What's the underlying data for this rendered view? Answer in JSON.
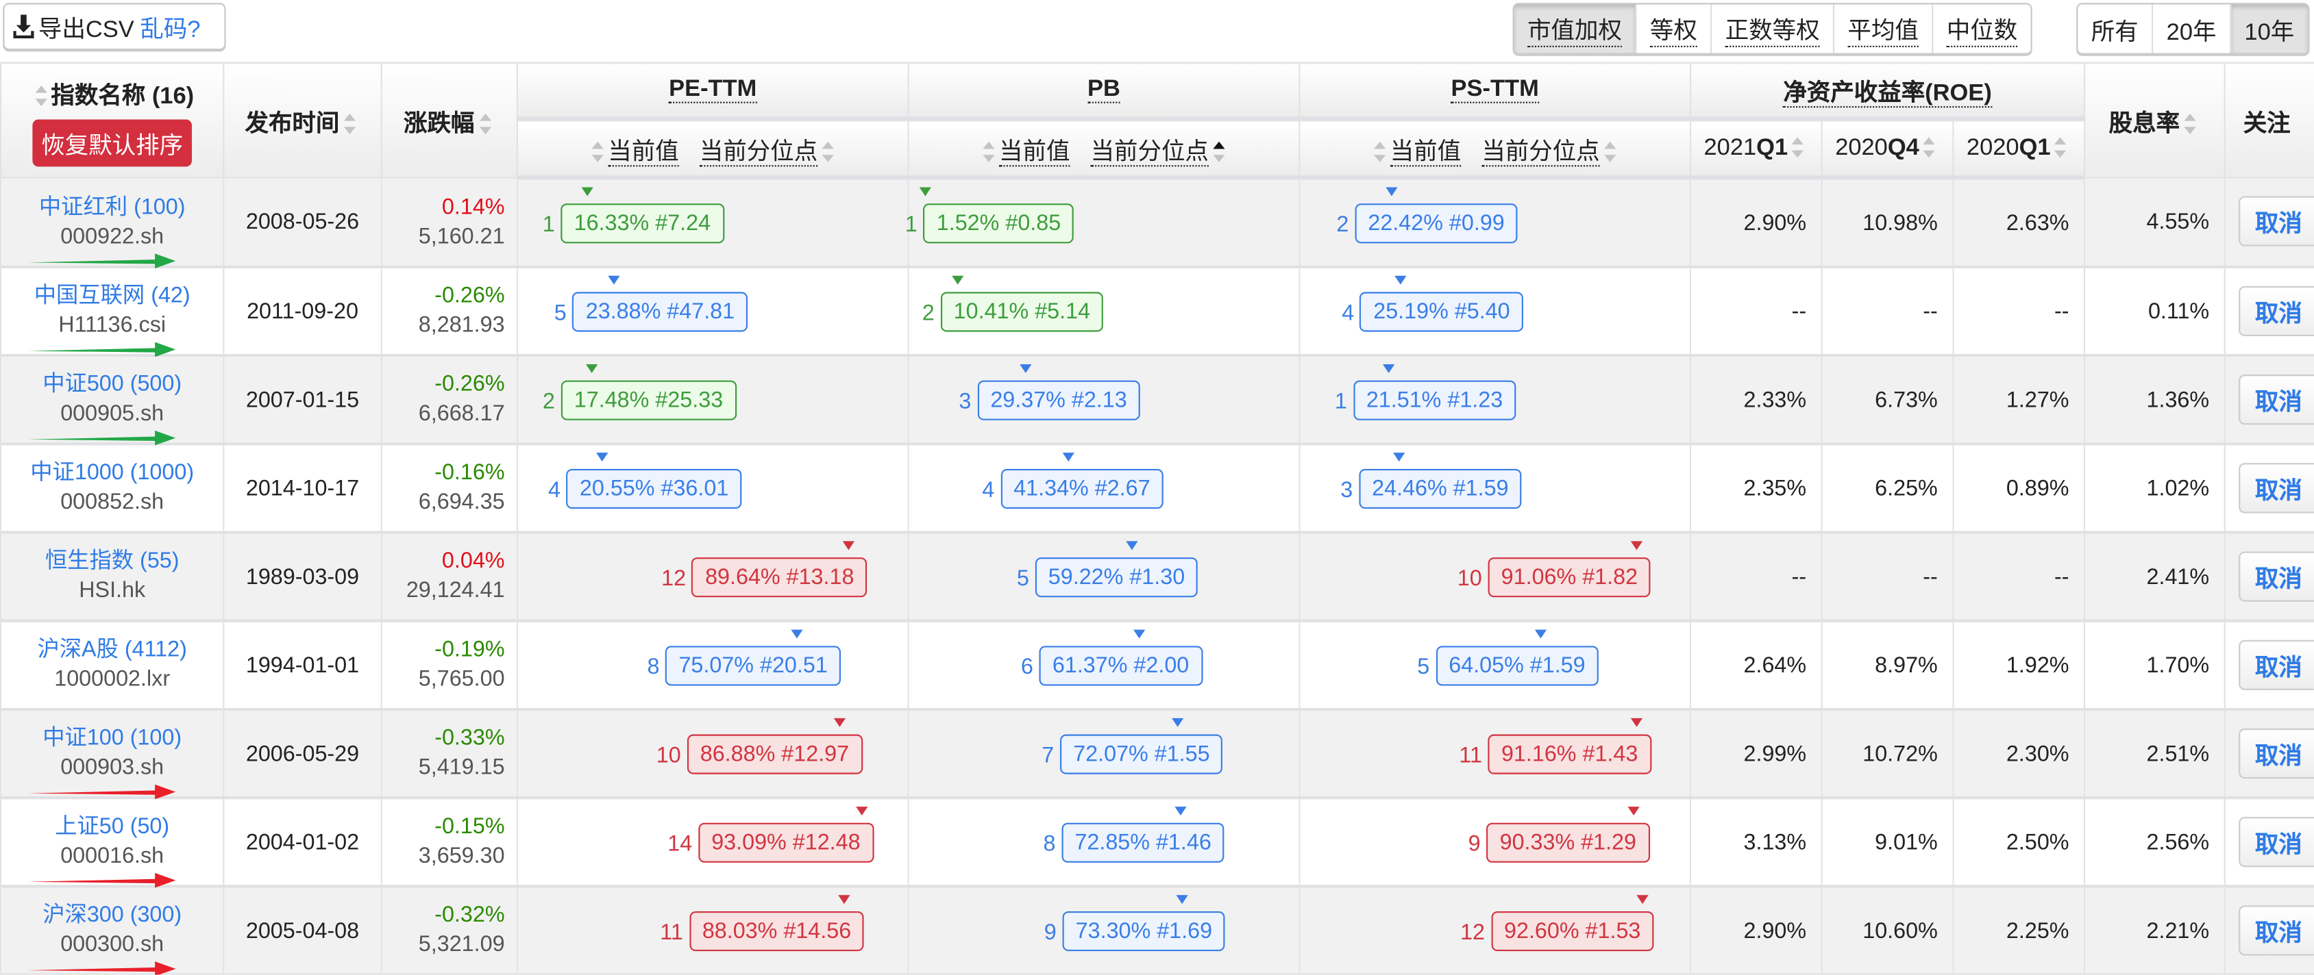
{
  "toolbar": {
    "export_label": "导出CSV",
    "garbled_link": "乱码?",
    "weighting_options": [
      {
        "label": "市值加权",
        "active": true
      },
      {
        "label": "等权",
        "active": false
      },
      {
        "label": "正数等权",
        "active": false
      },
      {
        "label": "平均值",
        "active": false
      },
      {
        "label": "中位数",
        "active": false
      }
    ],
    "period_options": [
      {
        "label": "所有",
        "active": false
      },
      {
        "label": "20年",
        "active": false
      },
      {
        "label": "10年",
        "active": true
      }
    ]
  },
  "header": {
    "name": "指数名称 (16)",
    "reset_sort": "恢复默认排序",
    "date": "发布时间",
    "change": "涨跌幅",
    "pe": "PE-TTM",
    "pb": "PB",
    "ps": "PS-TTM",
    "roe": "净资产收益率(ROE)",
    "current_value": "当前值",
    "current_percentile": "当前分位点",
    "roe_periods": [
      {
        "year": "2021",
        "q": "Q1"
      },
      {
        "year": "2020",
        "q": "Q4"
      },
      {
        "year": "2020",
        "q": "Q1"
      }
    ],
    "dividend": "股息率",
    "follow": "关注"
  },
  "colors": {
    "low": {
      "border": "#3d9d3d",
      "bg": "#edfbe9",
      "text": "#3d9d3d"
    },
    "mid": {
      "border": "#3a7ee6",
      "bg": "#edf4fe",
      "text": "#3a7ee6"
    },
    "high": {
      "border": "#d13540",
      "bg": "#f8e2e2",
      "text": "#d13540"
    },
    "arrow_green": "#22a846",
    "arrow_red": "#e8202a"
  },
  "cancel_label": "取消",
  "rows": [
    {
      "name": "中证红利 (100)",
      "code": "000922.sh",
      "date": "2008-05-26",
      "change": "0.14%",
      "price": "5,160.21",
      "arrow": "green",
      "pe": {
        "rank": "1",
        "pct": 16.33,
        "text": "16.33% #7.24",
        "level": "low"
      },
      "pb": {
        "rank": "1",
        "pct": 1.52,
        "text": "1.52% #0.85",
        "level": "low"
      },
      "ps": {
        "rank": "2",
        "pct": 22.42,
        "text": "22.42% #0.99",
        "level": "mid"
      },
      "roe": [
        "2.90%",
        "10.98%",
        "2.63%"
      ],
      "dividend": "4.55%"
    },
    {
      "name": "中国互联网 (42)",
      "code": "H11136.csi",
      "date": "2011-09-20",
      "change": "-0.26%",
      "price": "8,281.93",
      "arrow": "green",
      "pe": {
        "rank": "5",
        "pct": 23.88,
        "text": "23.88% #47.81",
        "level": "mid"
      },
      "pb": {
        "rank": "2",
        "pct": 10.41,
        "text": "10.41% #5.14",
        "level": "low"
      },
      "ps": {
        "rank": "4",
        "pct": 25.19,
        "text": "25.19% #5.40",
        "level": "mid"
      },
      "roe": [
        "--",
        "--",
        "--"
      ],
      "dividend": "0.11%"
    },
    {
      "name": "中证500 (500)",
      "code": "000905.sh",
      "date": "2007-01-15",
      "change": "-0.26%",
      "price": "6,668.17",
      "arrow": "green",
      "pe": {
        "rank": "2",
        "pct": 17.48,
        "text": "17.48% #25.33",
        "level": "low"
      },
      "pb": {
        "rank": "3",
        "pct": 29.37,
        "text": "29.37% #2.13",
        "level": "mid"
      },
      "ps": {
        "rank": "1",
        "pct": 21.51,
        "text": "21.51% #1.23",
        "level": "mid"
      },
      "roe": [
        "2.33%",
        "6.73%",
        "1.27%"
      ],
      "dividend": "1.36%"
    },
    {
      "name": "中证1000 (1000)",
      "code": "000852.sh",
      "date": "2014-10-17",
      "change": "-0.16%",
      "price": "6,694.35",
      "arrow": null,
      "pe": {
        "rank": "4",
        "pct": 20.55,
        "text": "20.55% #36.01",
        "level": "mid"
      },
      "pb": {
        "rank": "4",
        "pct": 41.34,
        "text": "41.34% #2.67",
        "level": "mid"
      },
      "ps": {
        "rank": "3",
        "pct": 24.46,
        "text": "24.46% #1.59",
        "level": "mid"
      },
      "roe": [
        "2.35%",
        "6.25%",
        "0.89%"
      ],
      "dividend": "1.02%"
    },
    {
      "name": "恒生指数 (55)",
      "code": "HSI.hk",
      "date": "1989-03-09",
      "change": "0.04%",
      "price": "29,124.41",
      "arrow": null,
      "pe": {
        "rank": "12",
        "pct": 89.64,
        "text": "89.64% #13.18",
        "level": "high"
      },
      "pb": {
        "rank": "5",
        "pct": 59.22,
        "text": "59.22% #1.30",
        "level": "mid"
      },
      "ps": {
        "rank": "10",
        "pct": 91.06,
        "text": "91.06% #1.82",
        "level": "high"
      },
      "roe": [
        "--",
        "--",
        "--"
      ],
      "dividend": "2.41%"
    },
    {
      "name": "沪深A股 (4112)",
      "code": "1000002.lxr",
      "date": "1994-01-01",
      "change": "-0.19%",
      "price": "5,765.00",
      "arrow": null,
      "pe": {
        "rank": "8",
        "pct": 75.07,
        "text": "75.07% #20.51",
        "level": "mid"
      },
      "pb": {
        "rank": "6",
        "pct": 61.37,
        "text": "61.37% #2.00",
        "level": "mid"
      },
      "ps": {
        "rank": "5",
        "pct": 64.05,
        "text": "64.05% #1.59",
        "level": "mid"
      },
      "roe": [
        "2.64%",
        "8.97%",
        "1.92%"
      ],
      "dividend": "1.70%"
    },
    {
      "name": "中证100 (100)",
      "code": "000903.sh",
      "date": "2006-05-29",
      "change": "-0.33%",
      "price": "5,419.15",
      "arrow": "red",
      "pe": {
        "rank": "10",
        "pct": 86.88,
        "text": "86.88% #12.97",
        "level": "high"
      },
      "pb": {
        "rank": "7",
        "pct": 72.07,
        "text": "72.07% #1.55",
        "level": "mid"
      },
      "ps": {
        "rank": "11",
        "pct": 91.16,
        "text": "91.16% #1.43",
        "level": "high"
      },
      "roe": [
        "2.99%",
        "10.72%",
        "2.30%"
      ],
      "dividend": "2.51%"
    },
    {
      "name": "上证50 (50)",
      "code": "000016.sh",
      "date": "2004-01-02",
      "change": "-0.15%",
      "price": "3,659.30",
      "arrow": "red",
      "pe": {
        "rank": "14",
        "pct": 93.09,
        "text": "93.09% #12.48",
        "level": "high"
      },
      "pb": {
        "rank": "8",
        "pct": 72.85,
        "text": "72.85% #1.46",
        "level": "mid"
      },
      "ps": {
        "rank": "9",
        "pct": 90.33,
        "text": "90.33% #1.29",
        "level": "high"
      },
      "roe": [
        "3.13%",
        "9.01%",
        "2.50%"
      ],
      "dividend": "2.56%"
    },
    {
      "name": "沪深300 (300)",
      "code": "000300.sh",
      "date": "2005-04-08",
      "change": "-0.32%",
      "price": "5,321.09",
      "arrow": "red",
      "pe": {
        "rank": "11",
        "pct": 88.03,
        "text": "88.03% #14.56",
        "level": "high"
      },
      "pb": {
        "rank": "9",
        "pct": 73.3,
        "text": "73.30% #1.69",
        "level": "mid"
      },
      "ps": {
        "rank": "12",
        "pct": 92.6,
        "text": "92.60% #1.53",
        "level": "high"
      },
      "roe": [
        "2.90%",
        "10.60%",
        "2.25%"
      ],
      "dividend": "2.21%"
    }
  ]
}
